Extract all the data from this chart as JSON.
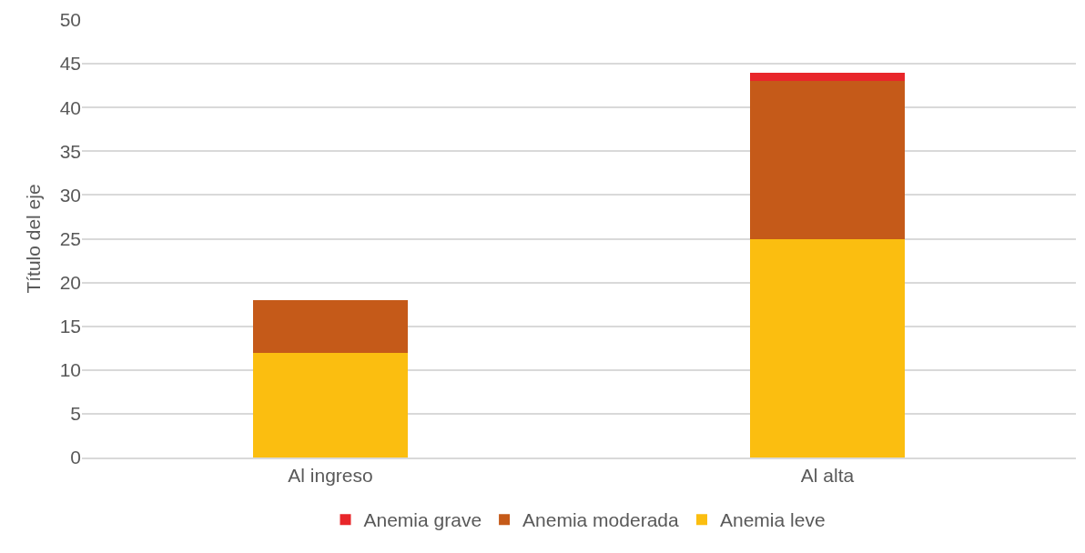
{
  "chart_data": {
    "type": "bar",
    "ylabel": "Título del eje",
    "categories": [
      "Al ingreso",
      "Al alta"
    ],
    "series": [
      {
        "name": "Anemia leve",
        "color": "#fbbe10",
        "values": [
          12,
          25
        ]
      },
      {
        "name": "Anemia moderada",
        "color": "#c55a19",
        "values": [
          6,
          18
        ]
      },
      {
        "name": "Anemia grave",
        "color": "#e8262a",
        "values": [
          0,
          1
        ]
      }
    ],
    "stacked": true,
    "ylim": [
      0,
      50
    ],
    "yticks": [
      0,
      5,
      10,
      15,
      20,
      25,
      30,
      35,
      40,
      45,
      50
    ],
    "grid": "y",
    "legend": "bottom"
  }
}
